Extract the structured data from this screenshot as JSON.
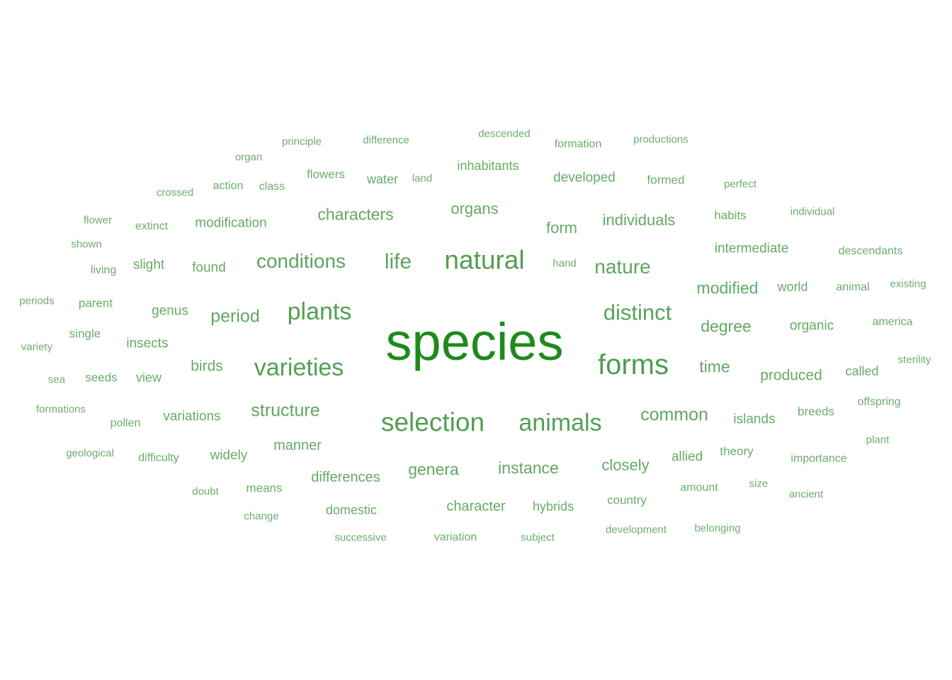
{
  "colors": {
    "main": "#1e8a1e",
    "text": "#4a9a4a"
  },
  "words": [
    {
      "text": "species",
      "weight": 1.0
    },
    {
      "text": "forms",
      "weight": 0.45
    },
    {
      "text": "natural",
      "weight": 0.42
    },
    {
      "text": "selection",
      "weight": 0.42
    },
    {
      "text": "animals",
      "weight": 0.4
    },
    {
      "text": "varieties",
      "weight": 0.4
    },
    {
      "text": "plants",
      "weight": 0.4
    },
    {
      "text": "distinct",
      "weight": 0.35
    },
    {
      "text": "conditions",
      "weight": 0.32
    },
    {
      "text": "life",
      "weight": 0.32
    },
    {
      "text": "nature",
      "weight": 0.3
    },
    {
      "text": "structure",
      "weight": 0.28
    },
    {
      "text": "common",
      "weight": 0.28
    },
    {
      "text": "period",
      "weight": 0.27
    },
    {
      "text": "characters",
      "weight": 0.26
    },
    {
      "text": "genera",
      "weight": 0.26
    },
    {
      "text": "instance",
      "weight": 0.26
    },
    {
      "text": "modified",
      "weight": 0.25
    },
    {
      "text": "degree",
      "weight": 0.25
    },
    {
      "text": "time",
      "weight": 0.25
    },
    {
      "text": "closely",
      "weight": 0.24
    },
    {
      "text": "individuals",
      "weight": 0.24
    },
    {
      "text": "organs",
      "weight": 0.23
    },
    {
      "text": "form",
      "weight": 0.23
    },
    {
      "text": "produced",
      "weight": 0.23
    },
    {
      "text": "birds",
      "weight": 0.22
    },
    {
      "text": "manner",
      "weight": 0.22
    },
    {
      "text": "character",
      "weight": 0.22
    },
    {
      "text": "differences",
      "weight": 0.22
    },
    {
      "text": "intermediate",
      "weight": 0.21
    },
    {
      "text": "organic",
      "weight": 0.21
    },
    {
      "text": "developed",
      "weight": 0.21
    },
    {
      "text": "found",
      "weight": 0.21
    },
    {
      "text": "variations",
      "weight": 0.21
    },
    {
      "text": "modification",
      "weight": 0.21
    },
    {
      "text": "insects",
      "weight": 0.2
    },
    {
      "text": "genus",
      "weight": 0.2
    },
    {
      "text": "islands",
      "weight": 0.2
    },
    {
      "text": "widely",
      "weight": 0.2
    },
    {
      "text": "slight",
      "weight": 0.2
    },
    {
      "text": "allied",
      "weight": 0.2
    },
    {
      "text": "inhabitants",
      "weight": 0.19
    },
    {
      "text": "view",
      "weight": 0.19
    },
    {
      "text": "water",
      "weight": 0.19
    },
    {
      "text": "domestic",
      "weight": 0.19
    },
    {
      "text": "hybrids",
      "weight": 0.19
    },
    {
      "text": "world",
      "weight": 0.19
    },
    {
      "text": "called",
      "weight": 0.19
    },
    {
      "text": "flowers",
      "weight": 0.18
    },
    {
      "text": "seeds",
      "weight": 0.18
    },
    {
      "text": "country",
      "weight": 0.18
    },
    {
      "text": "parent",
      "weight": 0.18
    },
    {
      "text": "breeds",
      "weight": 0.18
    },
    {
      "text": "theory",
      "weight": 0.18
    },
    {
      "text": "formed",
      "weight": 0.18
    },
    {
      "text": "means",
      "weight": 0.18
    },
    {
      "text": "habits",
      "weight": 0.18
    },
    {
      "text": "single",
      "weight": 0.18
    },
    {
      "text": "amount",
      "weight": 0.17
    },
    {
      "text": "animal",
      "weight": 0.17
    },
    {
      "text": "variation",
      "weight": 0.17
    },
    {
      "text": "difficulty",
      "weight": 0.17
    },
    {
      "text": "living",
      "weight": 0.17
    },
    {
      "text": "pollen",
      "weight": 0.17
    },
    {
      "text": "importance",
      "weight": 0.17
    },
    {
      "text": "formation",
      "weight": 0.17
    },
    {
      "text": "extinct",
      "weight": 0.17
    },
    {
      "text": "america",
      "weight": 0.17
    },
    {
      "text": "offspring",
      "weight": 0.17
    },
    {
      "text": "descendants",
      "weight": 0.17
    },
    {
      "text": "class",
      "weight": 0.17
    },
    {
      "text": "action",
      "weight": 0.17
    },
    {
      "text": "successive",
      "weight": 0.16
    },
    {
      "text": "subject",
      "weight": 0.16
    },
    {
      "text": "doubt",
      "weight": 0.16
    },
    {
      "text": "change",
      "weight": 0.16
    },
    {
      "text": "shown",
      "weight": 0.16
    },
    {
      "text": "difference",
      "weight": 0.16
    },
    {
      "text": "perfect",
      "weight": 0.16
    },
    {
      "text": "land",
      "weight": 0.16
    },
    {
      "text": "hand",
      "weight": 0.16
    },
    {
      "text": "sea",
      "weight": 0.16
    },
    {
      "text": "development",
      "weight": 0.16
    },
    {
      "text": "belonging",
      "weight": 0.16
    },
    {
      "text": "productions",
      "weight": 0.16
    },
    {
      "text": "principle",
      "weight": 0.16
    },
    {
      "text": "individual",
      "weight": 0.16
    },
    {
      "text": "formations",
      "weight": 0.16
    },
    {
      "text": "variety",
      "weight": 0.16
    },
    {
      "text": "periods",
      "weight": 0.16
    },
    {
      "text": "existing",
      "weight": 0.16
    },
    {
      "text": "flower",
      "weight": 0.16
    },
    {
      "text": "crossed",
      "weight": 0.16
    },
    {
      "text": "organ",
      "weight": 0.16
    },
    {
      "text": "size",
      "weight": 0.16
    },
    {
      "text": "ancient",
      "weight": 0.16
    },
    {
      "text": "plant",
      "weight": 0.16
    },
    {
      "text": "geological",
      "weight": 0.16
    },
    {
      "text": "descended",
      "weight": 0.16
    },
    {
      "text": "sterility",
      "weight": 0.16
    }
  ]
}
